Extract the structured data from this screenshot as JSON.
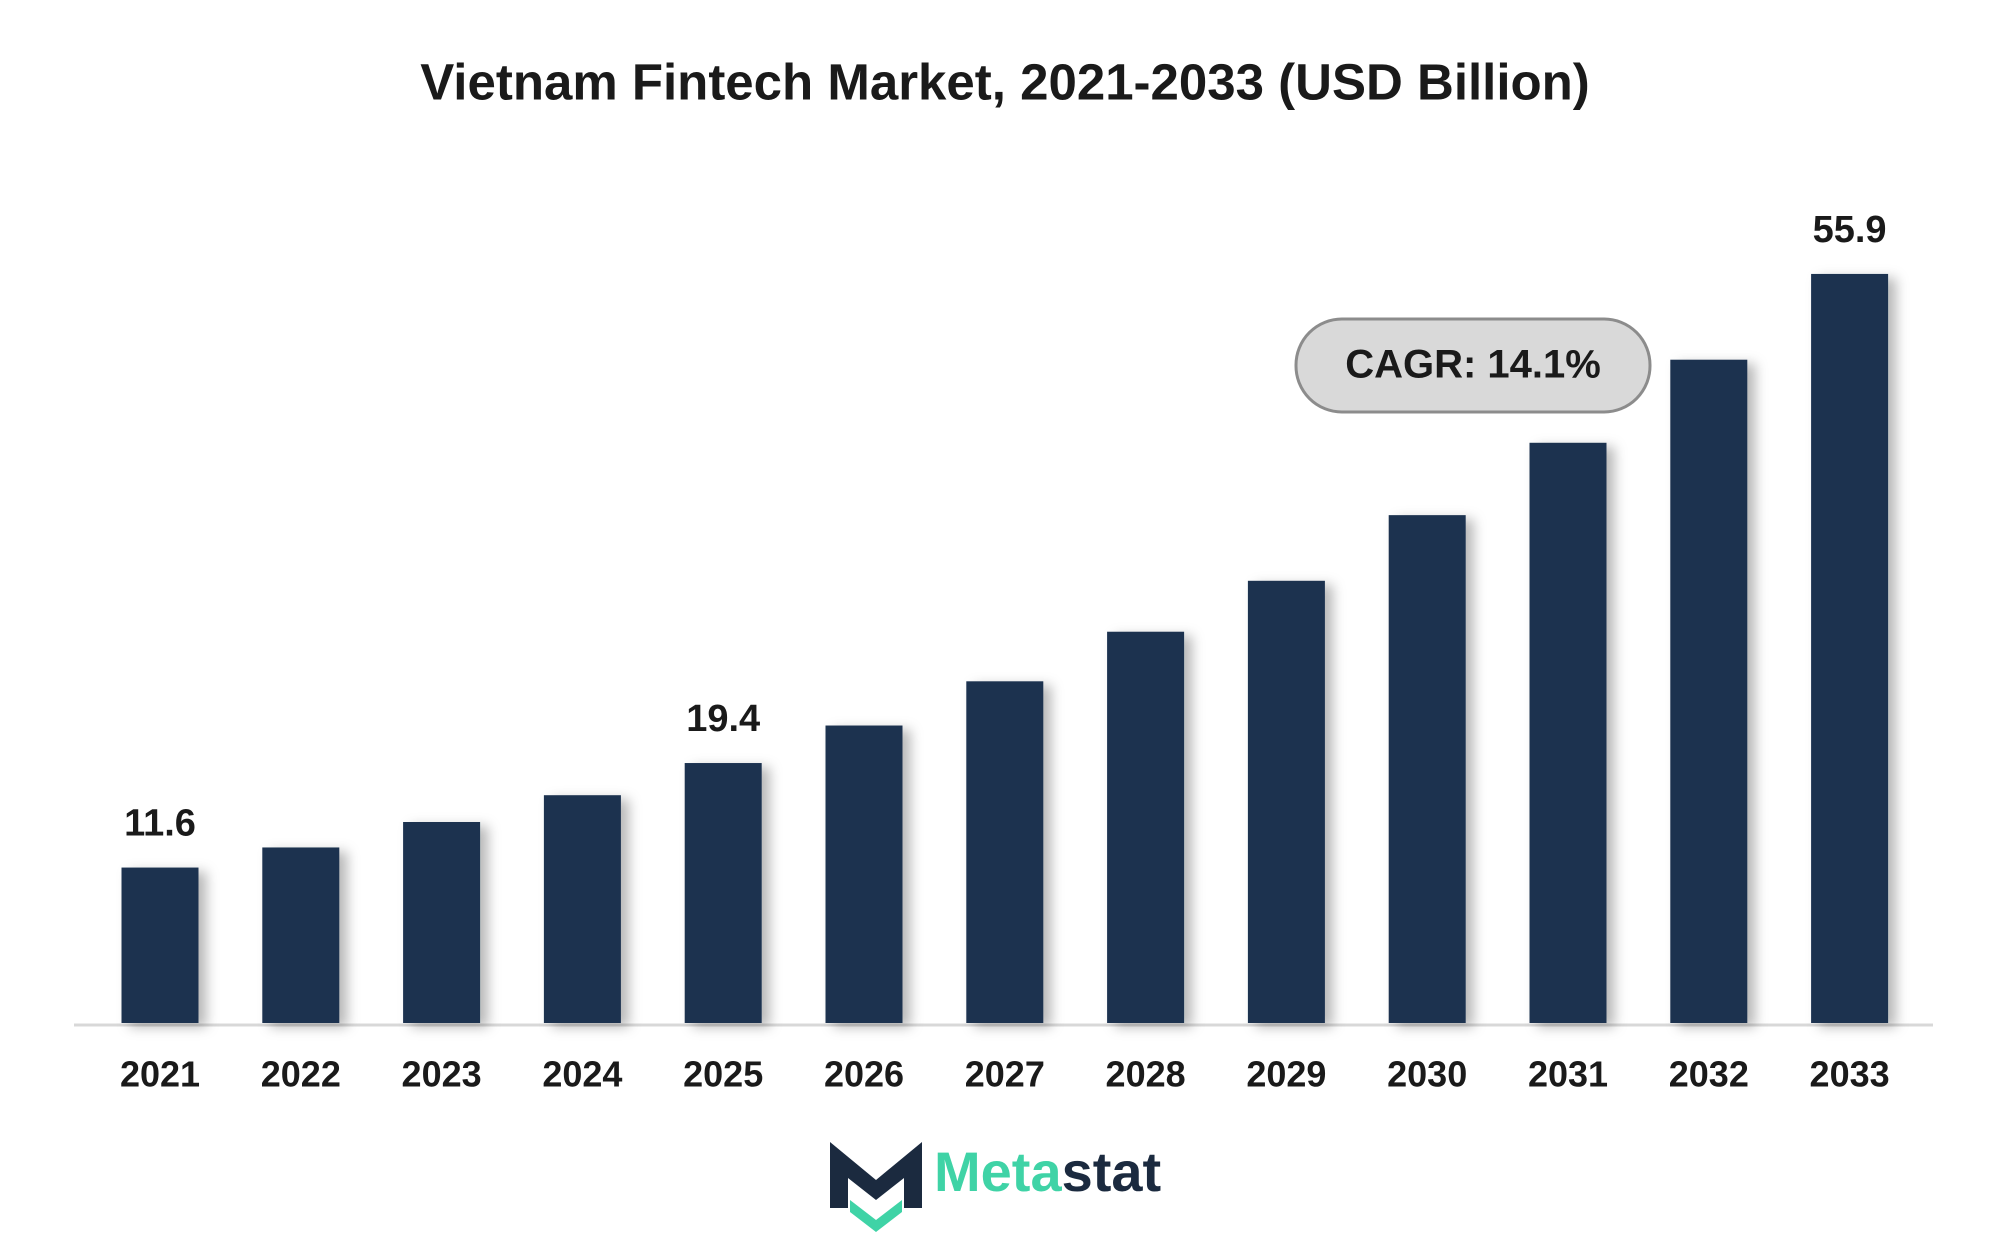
{
  "chart_data": {
    "type": "bar",
    "title": "Vietnam Fintech Market, 2021-2033 (USD Billion)",
    "categories": [
      "2021",
      "2022",
      "2023",
      "2024",
      "2025",
      "2026",
      "2027",
      "2028",
      "2029",
      "2030",
      "2031",
      "2032",
      "2033"
    ],
    "values": [
      11.6,
      13.1,
      15.0,
      17.0,
      19.4,
      22.2,
      25.5,
      29.2,
      33.0,
      37.9,
      43.3,
      49.5,
      55.9
    ],
    "value_labels": [
      "11.6",
      null,
      null,
      null,
      "19.4",
      null,
      null,
      null,
      null,
      null,
      null,
      null,
      "55.9"
    ],
    "color": "#1b3250",
    "ylim": [
      0,
      60
    ],
    "annotation": "CAGR: 14.1%",
    "logo": [
      "Meta",
      "stat"
    ]
  }
}
